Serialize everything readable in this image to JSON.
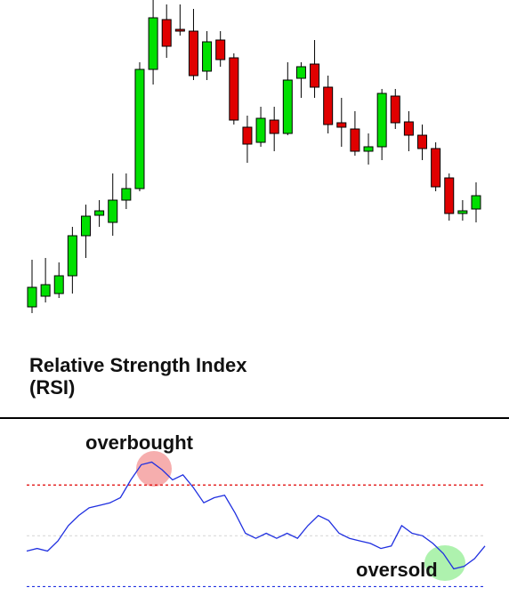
{
  "chart_data": [
    {
      "type": "candlestick",
      "ylim": [
        0,
        360
      ],
      "up_color": "#00e000",
      "down_color": "#e00000",
      "open": [
        15,
        27,
        30,
        50,
        95,
        118,
        110,
        135,
        148,
        282,
        338,
        327,
        325,
        280,
        315,
        295,
        217,
        200,
        225,
        210,
        272,
        288,
        262,
        222,
        215,
        190,
        195,
        252,
        223,
        208,
        193,
        160,
        120,
        125
      ],
      "close": [
        37,
        40,
        50,
        95,
        117,
        123,
        135,
        148,
        282,
        340,
        308,
        325,
        275,
        313,
        293,
        225,
        198,
        227,
        210,
        270,
        285,
        262,
        220,
        217,
        190,
        195,
        255,
        222,
        208,
        193,
        150,
        120,
        123,
        140
      ],
      "high": [
        68,
        70,
        65,
        105,
        130,
        135,
        165,
        165,
        290,
        360,
        355,
        355,
        350,
        325,
        325,
        300,
        230,
        240,
        240,
        290,
        290,
        315,
        275,
        250,
        235,
        210,
        260,
        260,
        235,
        220,
        200,
        165,
        135,
        155
      ],
      "low": [
        8,
        20,
        25,
        30,
        70,
        105,
        95,
        125,
        145,
        265,
        295,
        320,
        270,
        270,
        285,
        220,
        177,
        195,
        190,
        208,
        250,
        250,
        210,
        195,
        185,
        175,
        180,
        215,
        190,
        180,
        145,
        112,
        112,
        110
      ]
    },
    {
      "type": "line",
      "title": "Relative Strength Index (RSI)",
      "ylim": [
        20,
        96
      ],
      "color": "#2030e0",
      "values": [
        44,
        45,
        44,
        48,
        54,
        58,
        61,
        62,
        63,
        65,
        72,
        78,
        79,
        76,
        72,
        74,
        69,
        63,
        65,
        66,
        59,
        51,
        49,
        51,
        49,
        51,
        49,
        54,
        58,
        56,
        51,
        49,
        48,
        47,
        45,
        46,
        54,
        51,
        50,
        47,
        43,
        37,
        38,
        41,
        46
      ],
      "levels": [
        {
          "value": 70,
          "color": "#e00000"
        },
        {
          "value": 50,
          "color": "#dddddd"
        },
        {
          "value": 30,
          "color": "#2030e0"
        }
      ],
      "annotations": [
        {
          "text": "overbought"
        },
        {
          "text": "oversold"
        }
      ]
    }
  ]
}
